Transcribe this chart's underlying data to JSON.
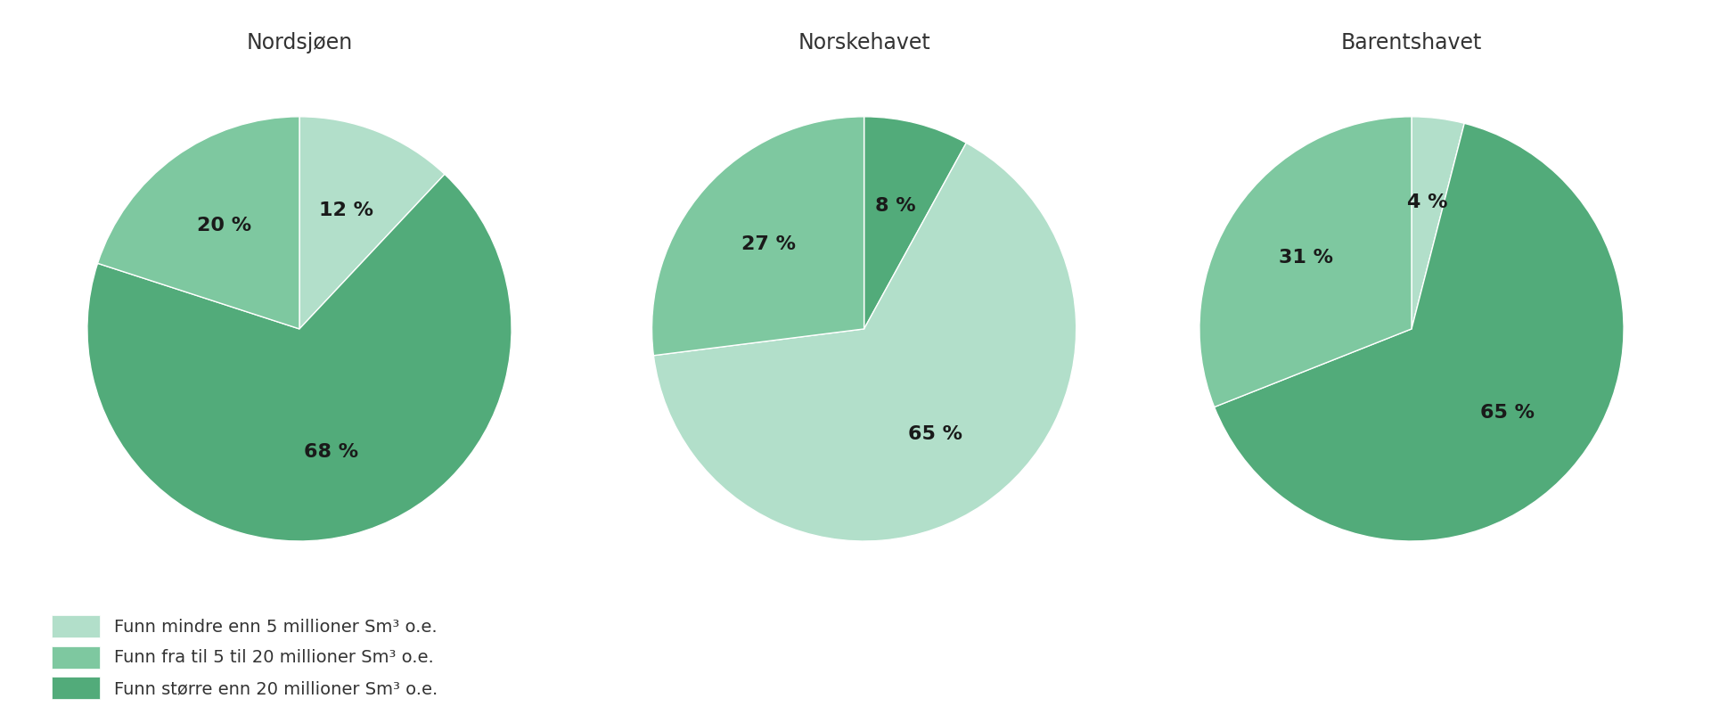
{
  "charts": [
    {
      "title": "Nordsjøen",
      "values": [
        12,
        20,
        68
      ],
      "labels": [
        "12 %",
        "20 %",
        "68 %"
      ],
      "startangle": 90,
      "color_order": [
        0,
        1,
        2
      ]
    },
    {
      "title": "Norskehavet",
      "values": [
        8,
        27,
        65
      ],
      "labels": [
        "8 %",
        "27 %",
        "65 %"
      ],
      "startangle": 90,
      "color_order": [
        2,
        0,
        1
      ]
    },
    {
      "title": "Barentshavet",
      "values": [
        4,
        31,
        65
      ],
      "labels": [
        "4 %",
        "31 %",
        "65 %"
      ],
      "startangle": 90,
      "color_order": [
        2,
        1,
        0
      ]
    }
  ],
  "colors": [
    "#b2dfca",
    "#7ec8a0",
    "#52ab7a"
  ],
  "legend_labels": [
    "Funn mindre enn 5 millioner Sm³ o.e.",
    "Funn fra til 5 til 20 millioner Sm³ o.e.",
    "Funn større enn 20 millioner Sm³ o.e."
  ],
  "legend_colors": [
    "#b2dfca",
    "#7ec8a0",
    "#52ab7a"
  ],
  "background_color": "#ffffff",
  "title_fontsize": 17,
  "label_fontsize": 16,
  "legend_fontsize": 14
}
